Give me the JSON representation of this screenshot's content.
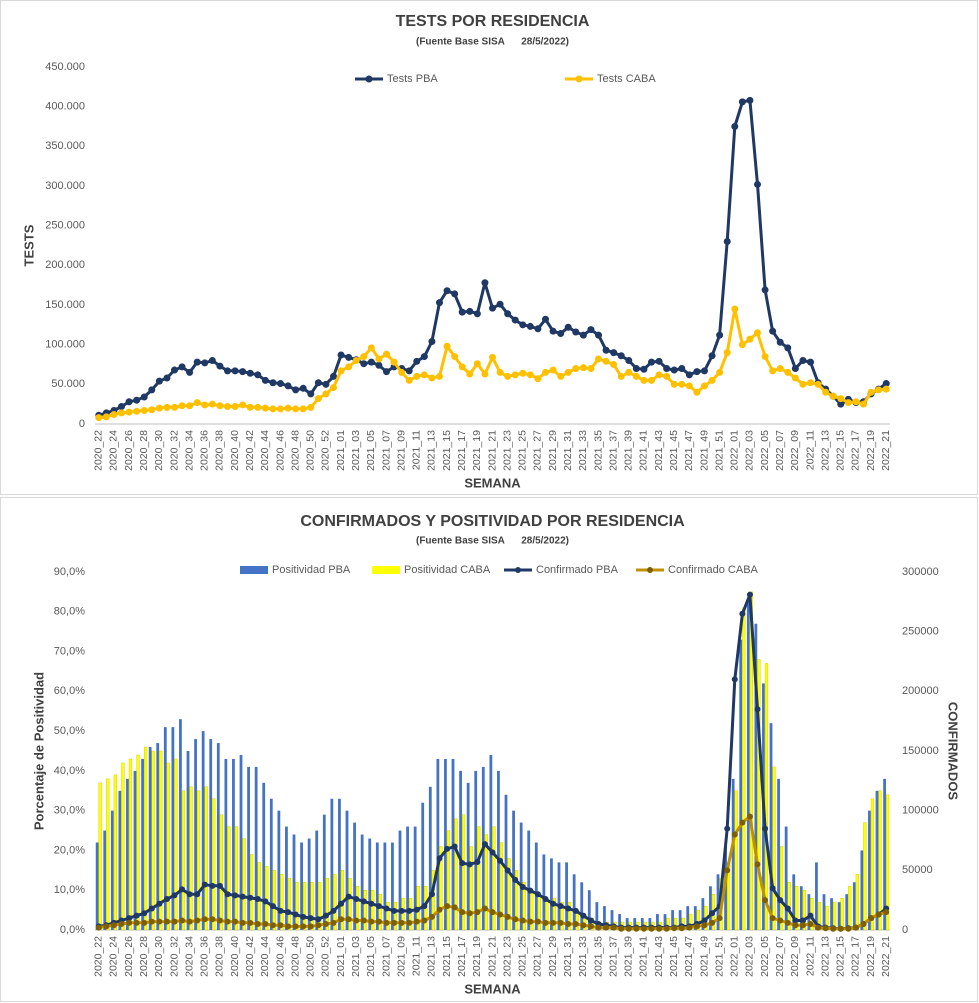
{
  "chart_data": [
    {
      "type": "line",
      "title": "TESTS POR RESIDENCIA",
      "subtitle": "(Fuente Base SISA      28/5/2022)",
      "ylabel": "TESTS",
      "xlabel": "SEMANA",
      "grid": false,
      "legend": "top",
      "categories": [
        "2020_22",
        null,
        "2020_24",
        null,
        "2020_26",
        null,
        "2020_28",
        null,
        "2020_30",
        null,
        "2020_32",
        null,
        "2020_34",
        null,
        "2020_36",
        null,
        "2020_38",
        null,
        "2020_40",
        null,
        "2020_42",
        null,
        "2020_44",
        null,
        "2020_46",
        null,
        "2020_48",
        null,
        "2020_50",
        null,
        "2020_52",
        null,
        "2021_01",
        null,
        "2021_03",
        null,
        "2021_05",
        null,
        "2021_07",
        null,
        "2021_09",
        null,
        "2021_11",
        null,
        "2021_13",
        null,
        "2021_15",
        null,
        "2021_17",
        null,
        "2021_19",
        null,
        "2021_21",
        null,
        "2021_23",
        null,
        "2021_25",
        null,
        "2021_27",
        null,
        "2021_29",
        null,
        "2021_31",
        null,
        "2021_33",
        null,
        "2021_35",
        null,
        "2021_37",
        null,
        "2021_39",
        null,
        "2021_41",
        null,
        "2021_43",
        null,
        "2021_45",
        null,
        "2021_47",
        null,
        "2021_49",
        null,
        "2021_51",
        null,
        "2022_01",
        null,
        "2022_03",
        null,
        "2022_05",
        null,
        "2022_07",
        null,
        "2022_09",
        null,
        "2022_11",
        null,
        "2022_13",
        null,
        "2022_15",
        null,
        "2022_17",
        null,
        "2022_19",
        null,
        "2022_21"
      ],
      "ylim": [
        0,
        450000
      ],
      "yticks": [
        0,
        {
          "value": 50000,
          "label": "50.000"
        },
        {
          "value": 100000,
          "label": "100.000"
        },
        {
          "value": 150000,
          "label": "150.000"
        },
        {
          "value": 200000,
          "label": "200.000"
        },
        {
          "value": 250000,
          "label": "250.000"
        },
        {
          "value": 300000,
          "label": "300.000"
        },
        {
          "value": 350000,
          "label": "350.000"
        },
        {
          "value": 400000,
          "label": "400.000"
        },
        {
          "value": 450000,
          "label": "450.000"
        }
      ],
      "series": [
        {
          "name": "Tests PBA",
          "color": "#1f3864",
          "type": "line",
          "values": [
            11000,
            14000,
            17000,
            22000,
            28000,
            30000,
            34000,
            43000,
            54000,
            58000,
            68000,
            72000,
            65000,
            78000,
            77000,
            80000,
            73000,
            67000,
            67000,
            66000,
            64000,
            62000,
            55000,
            52000,
            51000,
            48000,
            43000,
            45000,
            38000,
            52000,
            50000,
            60000,
            87000,
            84000,
            81000,
            76000,
            78000,
            74000,
            66000,
            72000,
            70000,
            67000,
            79000,
            85000,
            104000,
            153000,
            168000,
            164000,
            141000,
            142000,
            139000,
            178000,
            146000,
            151000,
            139000,
            131000,
            125000,
            123000,
            120000,
            132000,
            117000,
            114000,
            122000,
            116000,
            112000,
            119000,
            112000,
            93000,
            90000,
            86000,
            80000,
            70000,
            69000,
            78000,
            79000,
            70000,
            68000,
            70000,
            62000,
            66000,
            67000,
            86000,
            112000,
            230000,
            375000,
            406000,
            408000,
            302000,
            169000,
            117000,
            103000,
            96000,
            70000,
            80000,
            78000,
            52000,
            44000,
            35000,
            25000,
            31000,
            27000,
            28000,
            38000,
            44000,
            51000
          ]
        },
        {
          "name": "Tests CABA",
          "color": "#ffc000",
          "type": "line",
          "values": [
            8000,
            9000,
            12000,
            14000,
            15000,
            16000,
            17000,
            18000,
            20000,
            21000,
            21000,
            23000,
            23000,
            27000,
            24000,
            25000,
            23000,
            22000,
            22000,
            24000,
            21000,
            21000,
            20000,
            19000,
            19000,
            20000,
            19000,
            19000,
            21000,
            32000,
            38000,
            46000,
            67000,
            72000,
            80000,
            85000,
            96000,
            82000,
            88000,
            78000,
            65000,
            55000,
            60000,
            62000,
            58000,
            60000,
            98000,
            85000,
            72000,
            63000,
            76000,
            63000,
            84000,
            65000,
            60000,
            62000,
            64000,
            62000,
            57000,
            65000,
            68000,
            60000,
            65000,
            70000,
            71000,
            70000,
            82000,
            79000,
            75000,
            60000,
            65000,
            60000,
            55000,
            55000,
            62000,
            60000,
            50000,
            50000,
            48000,
            40000,
            48000,
            55000,
            65000,
            90000,
            145000,
            100000,
            107000,
            115000,
            85000,
            67000,
            70000,
            65000,
            58000,
            50000,
            52000,
            50000,
            40000,
            35000,
            32000,
            27000,
            28000,
            25000,
            40000,
            43000,
            44000
          ]
        }
      ]
    },
    {
      "type": "bar",
      "title": "CONFIRMADOS Y POSITIVIDAD POR RESIDENCIA",
      "subtitle": "(Fuente Base SISA      28/5/2022)",
      "ylabel": "Porcentaje de Positividad",
      "y2label": "CONFIRMADOS",
      "xlabel": "SEMANA",
      "grid": false,
      "legend": "top",
      "categories": [
        "2020_22",
        null,
        "2020_24",
        null,
        "2020_26",
        null,
        "2020_28",
        null,
        "2020_30",
        null,
        "2020_32",
        null,
        "2020_34",
        null,
        "2020_36",
        null,
        "2020_38",
        null,
        "2020_40",
        null,
        "2020_42",
        null,
        "2020_44",
        null,
        "2020_46",
        null,
        "2020_48",
        null,
        "2020_50",
        null,
        "2020_52",
        null,
        "2021_01",
        null,
        "2021_03",
        null,
        "2021_05",
        null,
        "2021_07",
        null,
        "2021_09",
        null,
        "2021_11",
        null,
        "2021_13",
        null,
        "2021_15",
        null,
        "2021_17",
        null,
        "2021_19",
        null,
        "2021_21",
        null,
        "2021_23",
        null,
        "2021_25",
        null,
        "2021_27",
        null,
        "2021_29",
        null,
        "2021_31",
        null,
        "2021_33",
        null,
        "2021_35",
        null,
        "2021_37",
        null,
        "2021_39",
        null,
        "2021_41",
        null,
        "2021_43",
        null,
        "2021_45",
        null,
        "2021_47",
        null,
        "2021_49",
        null,
        "2021_51",
        null,
        "2022_01",
        null,
        "2022_03",
        null,
        "2022_05",
        null,
        "2022_07",
        null,
        "2022_09",
        null,
        "2022_11",
        null,
        "2022_13",
        null,
        "2022_15",
        null,
        "2022_17",
        null,
        "2022_19",
        null,
        "2022_21"
      ],
      "ylim": [
        0,
        90
      ],
      "yticks": [
        {
          "value": 0,
          "label": "0,0%"
        },
        {
          "value": 10,
          "label": "10,0%"
        },
        {
          "value": 20,
          "label": "20,0%"
        },
        {
          "value": 30,
          "label": "30,0%"
        },
        {
          "value": 40,
          "label": "40,0%"
        },
        {
          "value": 50,
          "label": "50,0%"
        },
        {
          "value": 60,
          "label": "60,0%"
        },
        {
          "value": 70,
          "label": "70,0%"
        },
        {
          "value": 80,
          "label": "80,0%"
        },
        {
          "value": 90,
          "label": "90,0%"
        }
      ],
      "y2lim": [
        0,
        300000
      ],
      "y2ticks": [
        0,
        50000,
        100000,
        150000,
        200000,
        250000,
        300000
      ],
      "series": [
        {
          "name": "Positividad PBA",
          "color": "#4472c4",
          "type": "bar",
          "values": [
            22,
            25,
            30,
            35,
            38,
            40,
            43,
            46,
            47,
            51,
            51,
            53,
            45,
            48,
            50,
            48,
            47,
            43,
            43,
            44,
            41,
            41,
            37,
            33,
            30,
            26,
            24,
            22,
            23,
            25,
            29,
            33,
            33,
            30,
            27,
            24,
            23,
            22,
            22,
            22,
            25,
            26,
            26,
            32,
            36,
            43,
            43,
            43,
            40,
            37,
            40,
            41,
            44,
            40,
            34,
            30,
            27,
            25,
            22,
            19,
            18,
            17,
            17,
            14,
            12,
            10,
            7,
            6,
            5,
            4,
            3,
            3,
            3,
            3,
            4,
            4,
            5,
            5,
            6,
            6,
            8,
            11,
            14,
            21,
            38,
            73,
            83,
            77,
            62,
            52,
            38,
            26,
            14,
            11,
            9,
            17,
            9,
            8,
            7,
            9,
            12,
            20,
            30,
            35,
            38
          ]
        },
        {
          "name": "Positividad CABA",
          "color": "#ffff00",
          "type": "bar",
          "values": [
            37,
            38,
            39,
            42,
            43,
            44,
            46,
            45,
            45,
            42,
            43,
            35,
            36,
            35,
            36,
            33,
            29,
            26,
            26,
            23,
            19,
            17,
            16,
            15,
            14,
            13,
            12,
            12,
            12,
            12,
            13,
            14,
            15,
            13,
            11,
            10,
            10,
            9,
            7,
            7,
            8,
            8,
            11,
            11,
            15,
            21,
            25,
            28,
            29,
            21,
            26,
            24,
            26,
            22,
            18,
            15,
            12,
            10,
            9,
            8,
            8,
            7,
            7,
            5,
            4,
            3,
            2,
            2,
            2,
            2,
            2,
            2,
            2,
            2,
            2,
            3,
            3,
            3,
            4,
            5,
            6,
            9,
            13,
            17,
            35,
            81,
            85,
            68,
            67,
            41,
            21,
            12,
            11,
            10,
            8,
            7,
            6,
            7,
            8,
            11,
            14,
            27,
            33,
            35,
            34
          ]
        },
        {
          "name": "Confirmado PBA",
          "color": "#1f3864",
          "type": "line",
          "axis": "y2",
          "values": [
            3000,
            4000,
            6000,
            8000,
            10000,
            12000,
            14000,
            18000,
            22000,
            26000,
            29000,
            34000,
            30000,
            30000,
            38000,
            37000,
            37000,
            30000,
            29000,
            28000,
            27000,
            26000,
            24000,
            20000,
            16000,
            15000,
            13000,
            11000,
            10000,
            9000,
            12000,
            16000,
            22000,
            28000,
            26000,
            24000,
            22000,
            20000,
            18000,
            16000,
            16000,
            16000,
            17000,
            20000,
            30000,
            60000,
            68000,
            70000,
            56000,
            55000,
            57000,
            72000,
            65000,
            58000,
            50000,
            42000,
            36000,
            33000,
            30000,
            26000,
            22000,
            20000,
            18000,
            16000,
            12000,
            8000,
            5000,
            4000,
            3000,
            2000,
            2000,
            2000,
            2000,
            2000,
            2000,
            2000,
            2000,
            3000,
            3000,
            5000,
            8000,
            14000,
            20000,
            85000,
            210000,
            265000,
            281000,
            185000,
            85000,
            35000,
            25000,
            18000,
            8000,
            8000,
            12000,
            3000,
            2000,
            1500,
            1000,
            1500,
            2000,
            5000,
            10000,
            13000,
            18000
          ]
        },
        {
          "name": "Confirmado CABA",
          "color": "#bf9000",
          "type": "line",
          "axis": "y2",
          "values": [
            2000,
            3000,
            4000,
            5000,
            6000,
            6000,
            6000,
            7000,
            7000,
            7000,
            7000,
            8000,
            7000,
            8000,
            9000,
            9000,
            8000,
            7000,
            7000,
            6000,
            6000,
            5000,
            5000,
            4000,
            4000,
            3000,
            3000,
            3000,
            3000,
            4000,
            5000,
            6000,
            9000,
            9000,
            8000,
            8000,
            7000,
            7000,
            6000,
            6000,
            6000,
            6000,
            7000,
            8000,
            11000,
            17000,
            20000,
            19000,
            15000,
            14000,
            15000,
            18000,
            15000,
            13000,
            11000,
            9000,
            8000,
            7000,
            7000,
            6000,
            6000,
            6000,
            5000,
            5000,
            4000,
            3000,
            2000,
            2000,
            2000,
            1000,
            1000,
            1000,
            1000,
            1000,
            1000,
            1000,
            1500,
            1500,
            2000,
            3000,
            4000,
            6000,
            10000,
            50000,
            80000,
            90000,
            95000,
            55000,
            25000,
            10000,
            8000,
            6000,
            4000,
            4000,
            5000,
            2000,
            1500,
            1000,
            1000,
            1000,
            2000,
            5000,
            10000,
            13000,
            15000
          ]
        }
      ]
    }
  ]
}
